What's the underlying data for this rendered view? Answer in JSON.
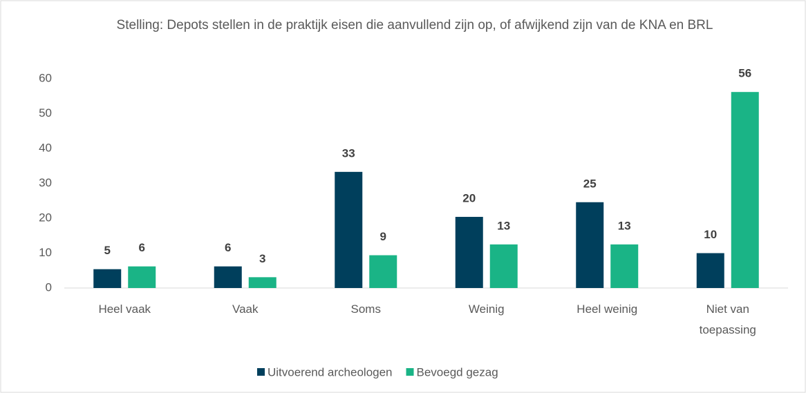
{
  "chart_data": {
    "type": "bar",
    "title": "Stelling: Depots stellen in de praktijk eisen die aanvullend zijn op, of afwijkend zijn van de KNA en BRL",
    "categories": [
      "Heel vaak",
      "Vaak",
      "Soms",
      "Weinig",
      "Heel weinig",
      "Niet van toepassing"
    ],
    "series": [
      {
        "name": "Uitvoerend archeologen",
        "color": "#003f5c",
        "values": [
          5.4,
          6.2,
          33.3,
          20.4,
          24.6,
          10
        ],
        "value_labels": [
          "5",
          "6",
          "33",
          "20",
          "25",
          "10"
        ]
      },
      {
        "name": "Bevoegd gezag",
        "color": "#1ab486",
        "values": [
          6.2,
          3.1,
          9.4,
          12.5,
          12.5,
          56.2
        ],
        "value_labels": [
          "6",
          "3",
          "9",
          "13",
          "13",
          "56"
        ]
      }
    ],
    "ylim": [
      0,
      60
    ],
    "yticks": [
      0,
      10,
      20,
      30,
      40,
      50,
      60
    ],
    "grid": false,
    "legend": "bottom"
  }
}
